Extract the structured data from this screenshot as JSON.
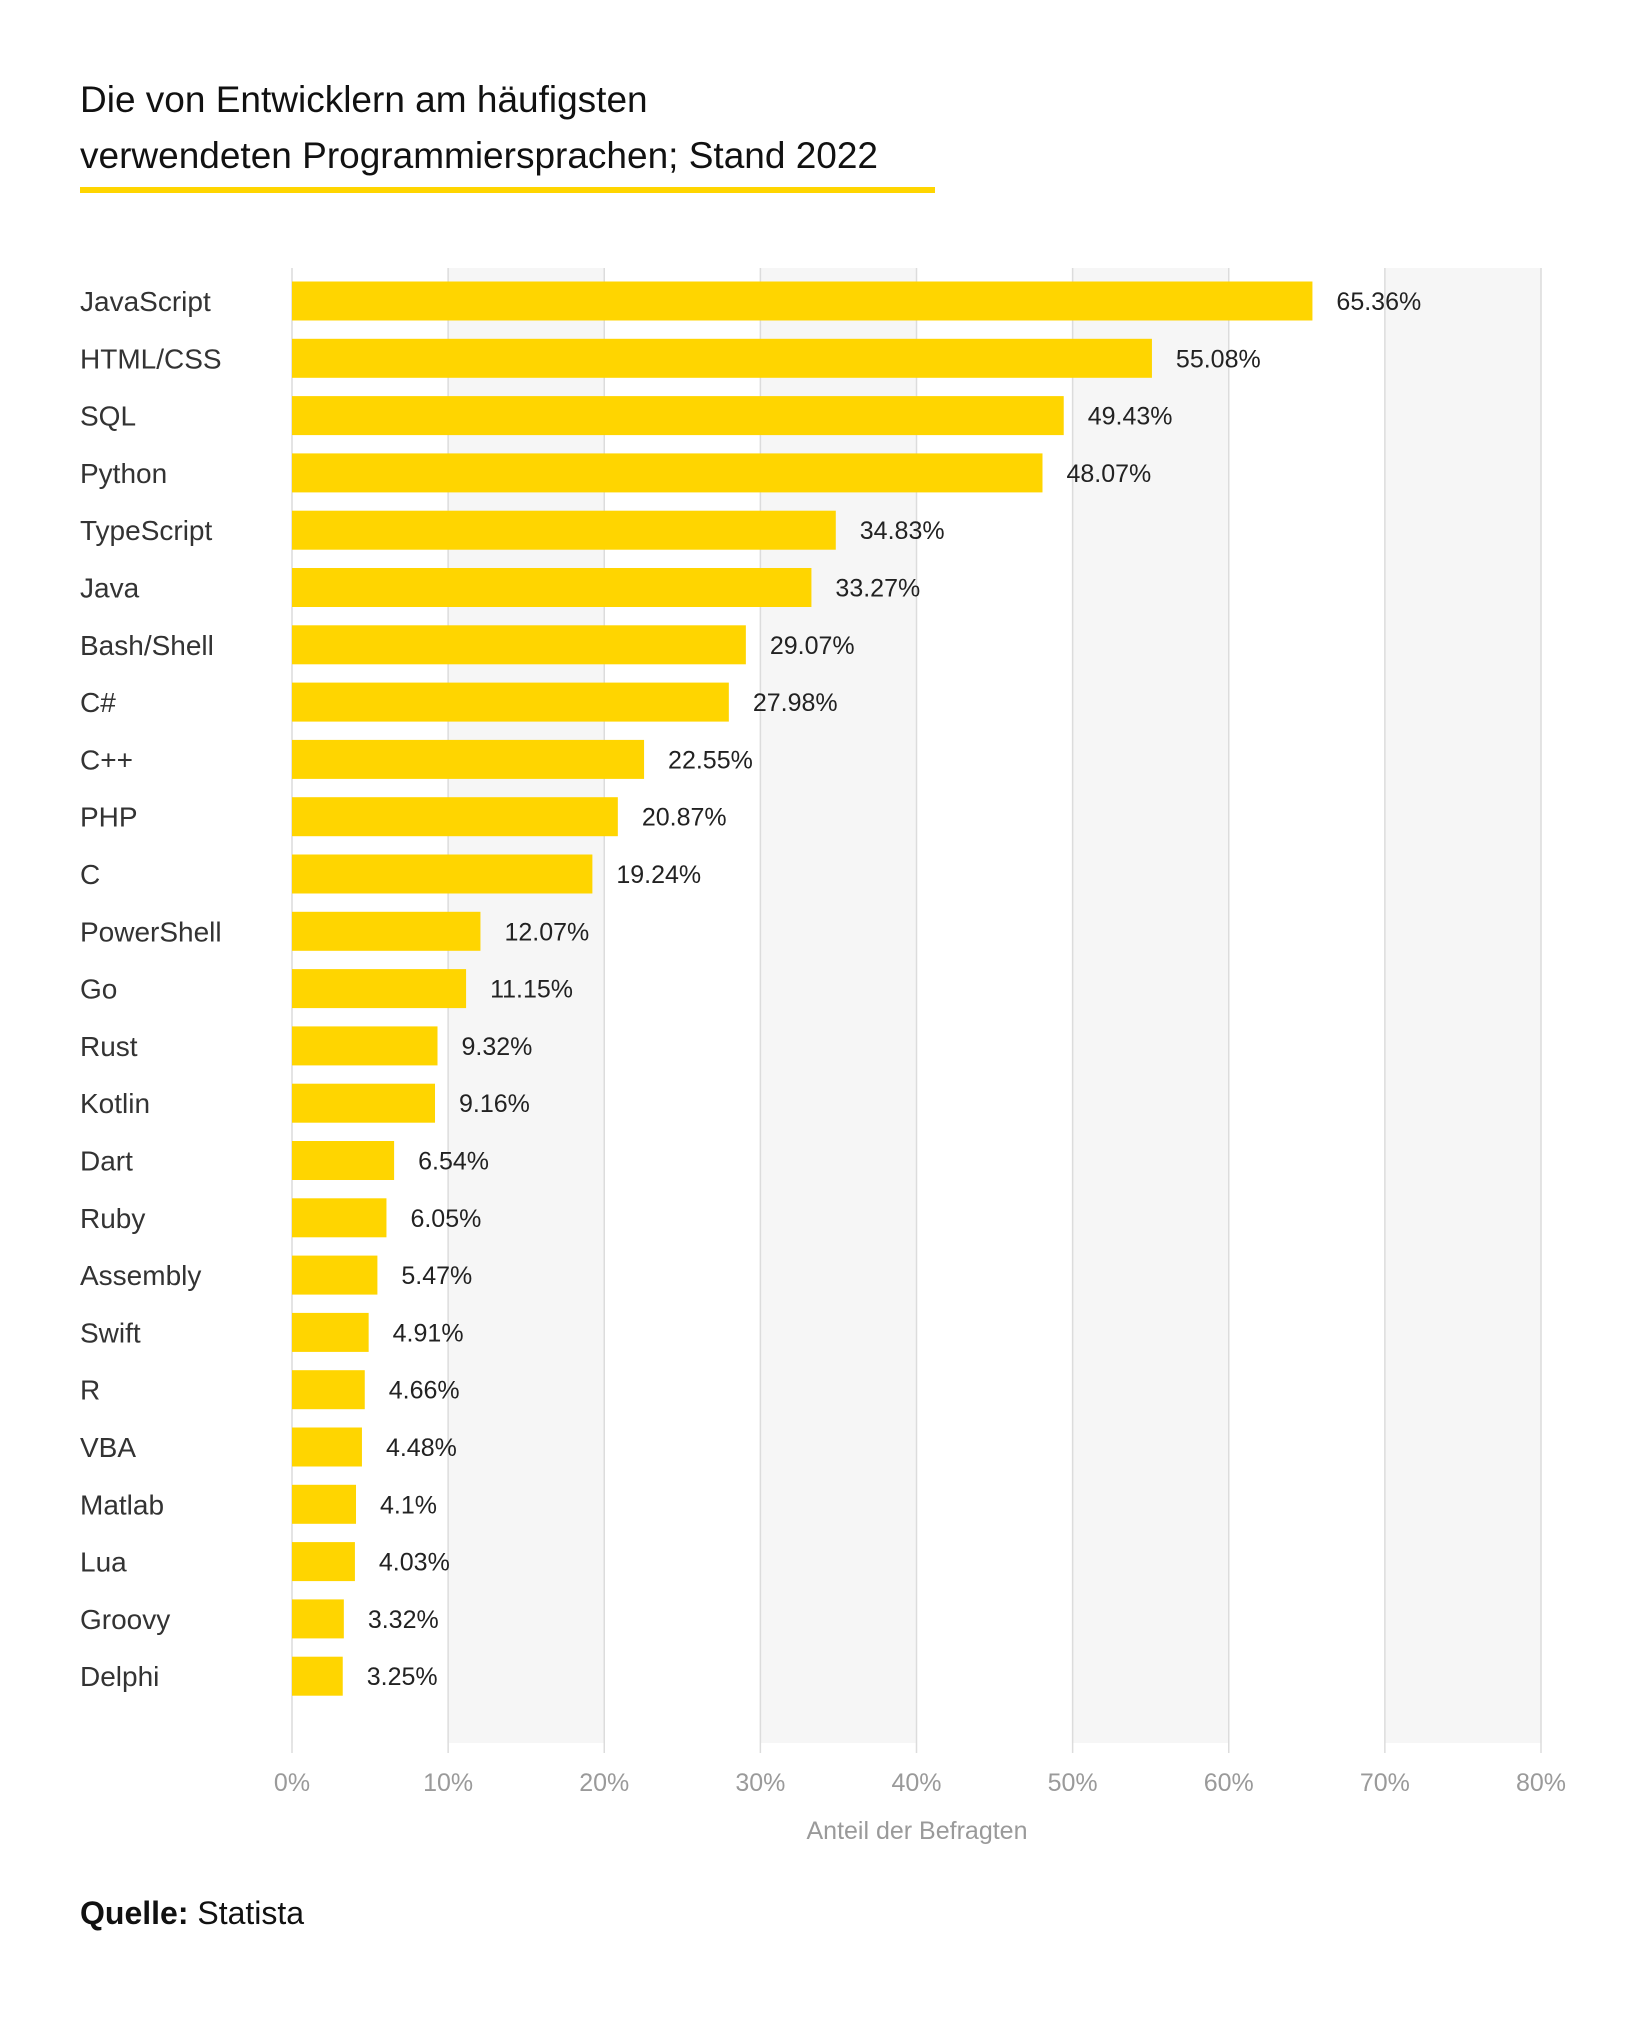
{
  "title": {
    "line1": "Die von Entwicklern am häufigsten",
    "line2": "verwendeten Programmiersprachen; Stand 2022"
  },
  "source": {
    "label": "Quelle:",
    "value": "Statista"
  },
  "colors": {
    "bar": "#ffd500",
    "accent": "#ffd500",
    "grid": "#dcdcdc",
    "band": "#f6f6f6",
    "axis_text": "#9a9a9a"
  },
  "chart_data": {
    "type": "bar",
    "orientation": "horizontal",
    "categories": [
      "JavaScript",
      "HTML/CSS",
      "SQL",
      "Python",
      "TypeScript",
      "Java",
      "Bash/Shell",
      "C#",
      "C++",
      "PHP",
      "C",
      "PowerShell",
      "Go",
      "Rust",
      "Kotlin",
      "Dart",
      "Ruby",
      "Assembly",
      "Swift",
      "R",
      "VBA",
      "Matlab",
      "Lua",
      "Groovy",
      "Delphi"
    ],
    "values": [
      65.36,
      55.08,
      49.43,
      48.07,
      34.83,
      33.27,
      29.07,
      27.98,
      22.55,
      20.87,
      19.24,
      12.07,
      11.15,
      9.32,
      9.16,
      6.54,
      6.05,
      5.47,
      4.91,
      4.66,
      4.48,
      4.1,
      4.03,
      3.32,
      3.25
    ],
    "value_labels": [
      "65.36%",
      "55.08%",
      "49.43%",
      "48.07%",
      "34.83%",
      "33.27%",
      "29.07%",
      "27.98%",
      "22.55%",
      "20.87%",
      "19.24%",
      "12.07%",
      "11.15%",
      "9.32%",
      "9.16%",
      "6.54%",
      "6.05%",
      "5.47%",
      "4.91%",
      "4.66%",
      "4.48%",
      "4.1%",
      "4.03%",
      "3.32%",
      "3.25%"
    ],
    "xlabel": "Anteil der Befragten",
    "ylabel": "",
    "xlim": [
      0,
      80
    ],
    "xticks": [
      0,
      10,
      20,
      30,
      40,
      50,
      60,
      70,
      80
    ],
    "xtick_labels": [
      "0%",
      "10%",
      "20%",
      "30%",
      "40%",
      "50%",
      "60%",
      "70%",
      "80%"
    ],
    "grid": true,
    "legend": false
  }
}
